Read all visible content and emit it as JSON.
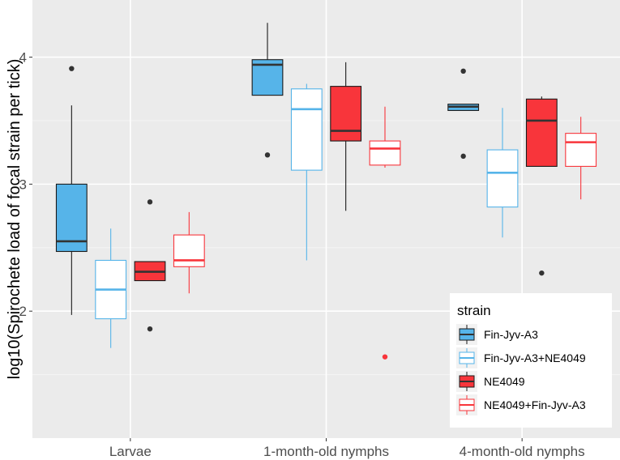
{
  "chart_data": {
    "type": "boxplot",
    "title": "",
    "xlabel": "",
    "ylabel": "log10(Spirochete load of focal strain per tick)",
    "ylim": [
      1.0,
      4.45
    ],
    "yticks": [
      2,
      3,
      4
    ],
    "ytick_labels": [
      "2",
      "3",
      "4"
    ],
    "categories": [
      "Larvae",
      "1-month-old nymphs",
      "4-month-old nymphs"
    ],
    "grid": true,
    "legend": {
      "title": "strain",
      "position": "bottom-right",
      "entries": [
        "Fin-Jyv-A3",
        "Fin-Jyv-A3+NE4049",
        "NE4049",
        "NE4049+Fin-Jyv-A3"
      ]
    },
    "series": [
      {
        "name": "Fin-Jyv-A3",
        "fill": "#56b4e9",
        "line": "#1a1a1a",
        "median_color": "#333333",
        "boxes": [
          {
            "min": 1.97,
            "q1": 2.47,
            "median": 2.55,
            "q3": 3.0,
            "max": 3.62,
            "outliers": [
              3.91
            ]
          },
          {
            "min": 3.7,
            "q1": 3.7,
            "median": 3.94,
            "q3": 3.98,
            "max": 4.27,
            "outliers": [
              3.23
            ]
          },
          {
            "min": 3.58,
            "q1": 3.58,
            "median": 3.61,
            "q3": 3.63,
            "max": 3.63,
            "outliers": [
              3.89,
              3.22
            ]
          }
        ]
      },
      {
        "name": "Fin-Jyv-A3+NE4049",
        "fill": "#ffffff",
        "line": "#56b4e9",
        "median_color": "#56b4e9",
        "boxes": [
          {
            "min": 1.71,
            "q1": 1.94,
            "median": 2.17,
            "q3": 2.4,
            "max": 2.65,
            "outliers": []
          },
          {
            "min": 2.4,
            "q1": 3.11,
            "median": 3.59,
            "q3": 3.75,
            "max": 3.79,
            "outliers": []
          },
          {
            "min": 2.58,
            "q1": 2.82,
            "median": 3.09,
            "q3": 3.27,
            "max": 3.6,
            "outliers": []
          }
        ]
      },
      {
        "name": "NE4049",
        "fill": "#f8353b",
        "line": "#1a1a1a",
        "median_color": "#333333",
        "boxes": [
          {
            "min": 2.24,
            "q1": 2.24,
            "median": 2.31,
            "q3": 2.39,
            "max": 2.39,
            "outliers": [
              2.86,
              1.86
            ]
          },
          {
            "min": 2.79,
            "q1": 3.34,
            "median": 3.42,
            "q3": 3.77,
            "max": 3.96,
            "outliers": []
          },
          {
            "min": 3.14,
            "q1": 3.14,
            "median": 3.5,
            "q3": 3.67,
            "max": 3.69,
            "outliers": [
              2.3
            ]
          }
        ]
      },
      {
        "name": "NE4049+Fin-Jyv-A3",
        "fill": "#ffffff",
        "line": "#f8353b",
        "median_color": "#f8353b",
        "boxes": [
          {
            "min": 2.14,
            "q1": 2.35,
            "median": 2.4,
            "q3": 2.6,
            "max": 2.78,
            "outliers": []
          },
          {
            "min": 3.13,
            "q1": 3.15,
            "median": 3.28,
            "q3": 3.34,
            "max": 3.61,
            "outliers": [
              1.64
            ]
          },
          {
            "min": 2.88,
            "q1": 3.14,
            "median": 3.33,
            "q3": 3.4,
            "max": 3.53,
            "outliers": []
          }
        ]
      }
    ]
  }
}
